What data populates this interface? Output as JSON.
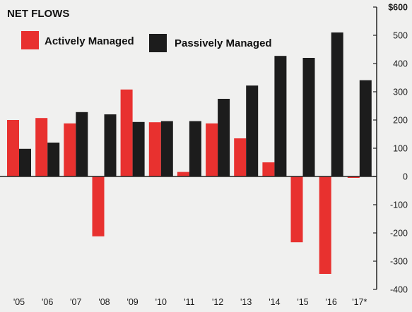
{
  "chart_data": {
    "type": "bar",
    "title": "NET FLOWS",
    "categories": [
      "'05",
      "'06",
      "'07",
      "'08",
      "'09",
      "'10",
      "'11",
      "'12",
      "'13",
      "'14",
      "'15",
      "'16",
      "'17*"
    ],
    "series": [
      {
        "name": "Actively Managed",
        "color": "#e8312f",
        "values": [
          200,
          207,
          188,
          -212,
          308,
          192,
          16,
          188,
          135,
          50,
          -233,
          -345,
          -5
        ]
      },
      {
        "name": "Passively Managed",
        "color": "#1c1c1c",
        "values": [
          98,
          120,
          228,
          220,
          193,
          196,
          196,
          275,
          322,
          427,
          420,
          510,
          341
        ]
      }
    ],
    "ylim": [
      -400,
      600
    ],
    "yticks": [
      {
        "value": 600,
        "label": "$600"
      },
      {
        "value": 500,
        "label": "500"
      },
      {
        "value": 400,
        "label": "400"
      },
      {
        "value": 300,
        "label": "300"
      },
      {
        "value": 200,
        "label": "200"
      },
      {
        "value": 100,
        "label": "100"
      },
      {
        "value": 0,
        "label": "0"
      },
      {
        "value": -100,
        "label": "-100"
      },
      {
        "value": -200,
        "label": "-200"
      },
      {
        "value": -300,
        "label": "-300"
      },
      {
        "value": -400,
        "label": "-400"
      }
    ],
    "legend_position": "top-left",
    "grid": false,
    "background_color": "#f0f0ef"
  }
}
